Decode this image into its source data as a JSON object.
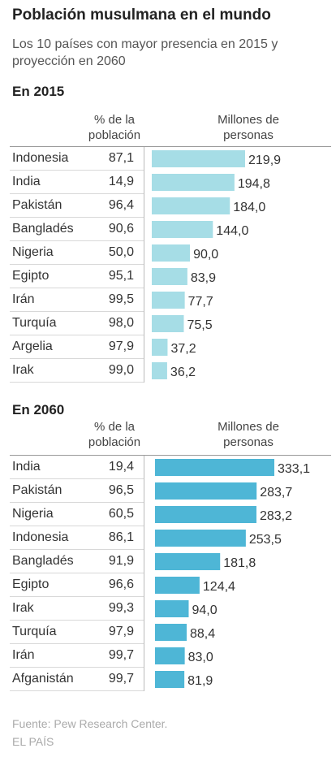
{
  "title": "Población musulmana en el mundo",
  "subtitle": "Los 10 países con mayor presencia en 2015 y proyección en 2060",
  "col_pct_label": "% de la población",
  "col_millions_label": "Millones de personas",
  "colors": {
    "bar_2015": "#a6dde6",
    "bar_2060": "#4eb6d6"
  },
  "footer": {
    "source": "Fuente: Pew Research Center.",
    "publisher": "EL PAÍS"
  },
  "chart_data": [
    {
      "type": "bar",
      "title": "En 2015",
      "categories": [
        "Indonesia",
        "India",
        "Pakistán",
        "Bangladés",
        "Nigeria",
        "Egipto",
        "Irán",
        "Turquía",
        "Argelia",
        "Irak"
      ],
      "pct_labels": [
        "87,1",
        "14,9",
        "96,4",
        "90,6",
        "50,0",
        "95,1",
        "99,5",
        "98,0",
        "97,9",
        "99,0"
      ],
      "value_labels": [
        "219,9",
        "194,8",
        "184,0",
        "144,0",
        "90,0",
        "83,9",
        "77,7",
        "75,5",
        "37,2",
        "36,2"
      ],
      "values": [
        219.9,
        194.8,
        184.0,
        144.0,
        90.0,
        83.9,
        77.7,
        75.5,
        37.2,
        36.2
      ]
    },
    {
      "type": "bar",
      "title": "En 2060",
      "categories": [
        "India",
        "Pakistán",
        "Nigeria",
        "Indonesia",
        "Bangladés",
        "Egipto",
        "Irak",
        "Turquía",
        "Irán",
        "Afganistán"
      ],
      "pct_labels": [
        "19,4",
        "96,5",
        "60,5",
        "86,1",
        "91,9",
        "96,6",
        "99,3",
        "97,9",
        "99,7",
        "99,7"
      ],
      "value_labels": [
        "333,1",
        "283,7",
        "283,2",
        "253,5",
        "181,8",
        "124,4",
        "94,0",
        "88,4",
        "83,0",
        "81,9"
      ],
      "values": [
        333.1,
        283.7,
        283.2,
        253.5,
        181.8,
        124.4,
        94.0,
        88.4,
        83.0,
        81.9
      ]
    }
  ]
}
